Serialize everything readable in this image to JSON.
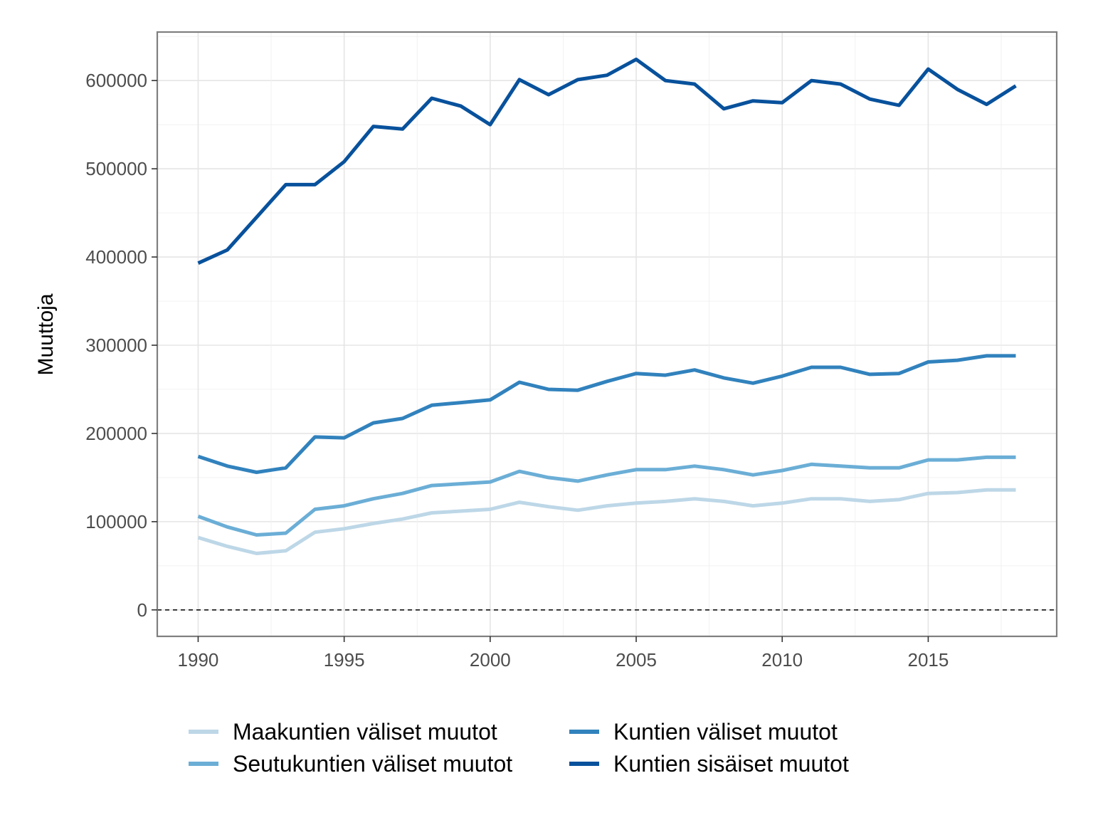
{
  "chart_data": {
    "type": "line",
    "title": "",
    "xlabel": "",
    "ylabel": "Muuttoja",
    "xlim": [
      1988.6,
      2019.4
    ],
    "ylim": [
      -30000,
      655000
    ],
    "grid": true,
    "legend_position": "bottom",
    "x": [
      1990,
      1991,
      1992,
      1993,
      1994,
      1995,
      1996,
      1997,
      1998,
      1999,
      2000,
      2001,
      2002,
      2003,
      2004,
      2005,
      2006,
      2007,
      2008,
      2009,
      2010,
      2011,
      2012,
      2013,
      2014,
      2015,
      2016,
      2017,
      2018
    ],
    "x_ticks": [
      1990,
      1995,
      2000,
      2005,
      2010,
      2015
    ],
    "x_tick_labels": [
      "1990",
      "1995",
      "2000",
      "2005",
      "2010",
      "2015"
    ],
    "y_ticks": [
      0,
      100000,
      200000,
      300000,
      400000,
      500000,
      600000
    ],
    "y_tick_labels": [
      "0",
      "100000",
      "200000",
      "300000",
      "400000",
      "500000",
      "600000"
    ],
    "reference_line": {
      "y": 0,
      "style": "dashed"
    },
    "series": [
      {
        "name": "Maakuntien väliset muutot",
        "color": "#bdd7e7",
        "values": [
          82000,
          72000,
          64000,
          67000,
          88000,
          92000,
          98000,
          103000,
          110000,
          112000,
          114000,
          122000,
          117000,
          113000,
          118000,
          121000,
          123000,
          126000,
          123000,
          118000,
          121000,
          126000,
          126000,
          123000,
          125000,
          132000,
          133000,
          136000,
          136000
        ]
      },
      {
        "name": "Seutukuntien väliset muutot",
        "color": "#6baed6",
        "values": [
          106000,
          94000,
          85000,
          87000,
          114000,
          118000,
          126000,
          132000,
          141000,
          143000,
          145000,
          157000,
          150000,
          146000,
          153000,
          159000,
          159000,
          163000,
          159000,
          153000,
          158000,
          165000,
          163000,
          161000,
          161000,
          170000,
          170000,
          173000,
          173000
        ]
      },
      {
        "name": "Kuntien väliset muutot",
        "color": "#3182bd",
        "values": [
          174000,
          163000,
          156000,
          161000,
          196000,
          195000,
          212000,
          217000,
          232000,
          235000,
          238000,
          258000,
          250000,
          249000,
          259000,
          268000,
          266000,
          272000,
          263000,
          257000,
          265000,
          275000,
          275000,
          267000,
          268000,
          281000,
          283000,
          288000,
          288000
        ]
      },
      {
        "name": "Kuntien sisäiset muutot",
        "color": "#08519c",
        "values": [
          393000,
          408000,
          445000,
          482000,
          482000,
          508000,
          548000,
          545000,
          580000,
          571000,
          550000,
          601000,
          584000,
          601000,
          606000,
          624000,
          600000,
          596000,
          568000,
          577000,
          575000,
          600000,
          596000,
          579000,
          572000,
          613000,
          590000,
          573000,
          594000
        ]
      }
    ]
  }
}
